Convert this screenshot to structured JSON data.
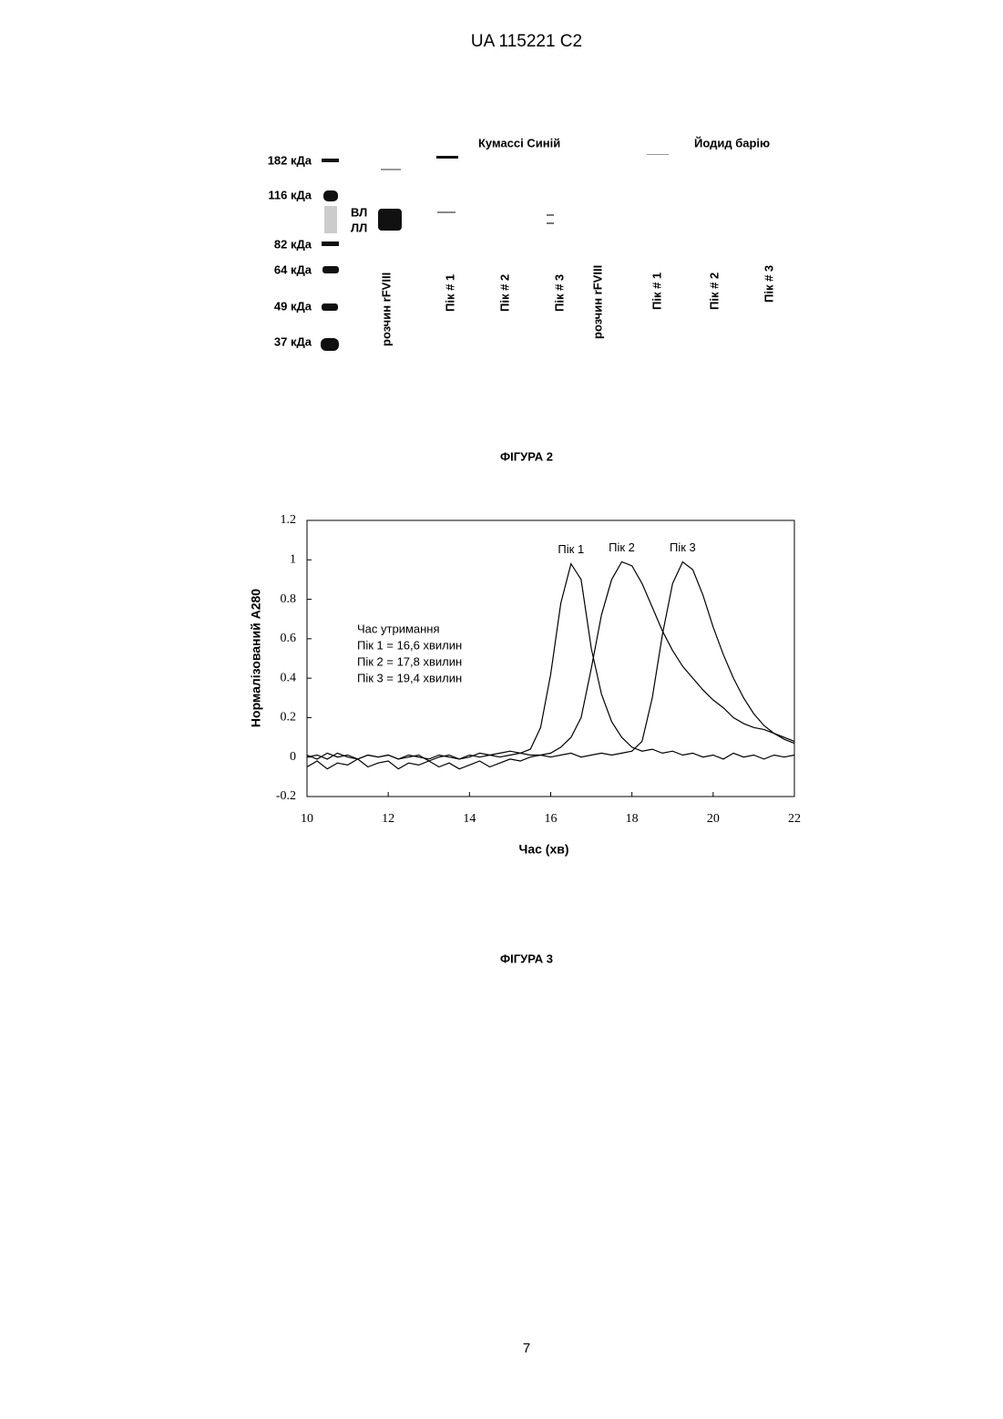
{
  "header": {
    "title": "UA   115221   C2"
  },
  "figure2": {
    "groups": [
      "Кумассі Синій",
      "Йодид барію"
    ],
    "markers": [
      "182 кДа",
      "116 кДа",
      "82 кДа",
      "64 кДа",
      "49 кДа",
      "37 кДа"
    ],
    "chains": [
      "ВЛ",
      "ЛЛ"
    ],
    "lanes": [
      "розчин rFVIII",
      "Пік # 1",
      "Пік # 2",
      "Пік # 3",
      "розчин rFVIII",
      "Пік # 1",
      "Пік # 2",
      "Пік # 3"
    ],
    "caption": "ФІГУРА 2"
  },
  "chart_data": {
    "type": "line",
    "x_label": "Час (хв)",
    "y_label": "Нормалізований A280",
    "annotations": [
      "Час утримання",
      "Пік 1 = 16,6 хвилин",
      "Пік 2 = 17,8 хвилин",
      "Пік 3 = 19,4 хвилин"
    ],
    "x": [
      10,
      10.25,
      10.5,
      10.75,
      11,
      11.25,
      11.5,
      11.75,
      12,
      12.25,
      12.5,
      12.75,
      13,
      13.25,
      13.5,
      13.75,
      14,
      14.25,
      14.5,
      14.75,
      15,
      15.25,
      15.5,
      15.75,
      16,
      16.25,
      16.5,
      16.75,
      17,
      17.25,
      17.5,
      17.75,
      18,
      18.25,
      18.5,
      18.75,
      19,
      19.25,
      19.5,
      19.75,
      20,
      20.25,
      20.5,
      20.75,
      21,
      21.25,
      21.5,
      21.75,
      22
    ],
    "series": [
      {
        "name": "Пік 1",
        "color": "#000000",
        "values": [
          0.01,
          -0.01,
          0.02,
          0,
          0.01,
          -0.01,
          0.01,
          0,
          0.01,
          -0.01,
          0.01,
          0,
          -0.01,
          0.01,
          0,
          -0.01,
          0.01,
          0,
          0.01,
          0.02,
          0.03,
          0.02,
          0.04,
          0.15,
          0.42,
          0.78,
          0.98,
          0.9,
          0.55,
          0.32,
          0.18,
          0.1,
          0.05,
          0.03,
          0.04,
          0.02,
          0.03,
          0.01,
          0.02,
          0,
          0.01,
          -0.01,
          0.02,
          0,
          0.01,
          -0.01,
          0.01,
          0,
          0.01
        ]
      },
      {
        "name": "Пік 2",
        "color": "#000000",
        "values": [
          0,
          0.01,
          -0.01,
          0.02,
          0,
          -0.01,
          0.01,
          0,
          0.01,
          -0.01,
          0,
          0.01,
          -0.02,
          0,
          0.01,
          -0.01,
          0,
          0.02,
          0.01,
          0,
          0.01,
          0.02,
          0.01,
          0.01,
          0.02,
          0.05,
          0.1,
          0.2,
          0.45,
          0.72,
          0.9,
          0.99,
          0.97,
          0.88,
          0.76,
          0.64,
          0.54,
          0.46,
          0.4,
          0.34,
          0.29,
          0.25,
          0.2,
          0.17,
          0.15,
          0.14,
          0.12,
          0.1,
          0.08
        ]
      },
      {
        "name": "Пік 3",
        "color": "#000000",
        "values": [
          -0.05,
          -0.02,
          -0.06,
          -0.03,
          -0.04,
          -0.01,
          -0.05,
          -0.03,
          -0.02,
          -0.06,
          -0.03,
          -0.04,
          -0.02,
          -0.05,
          -0.03,
          -0.06,
          -0.04,
          -0.02,
          -0.05,
          -0.03,
          -0.01,
          -0.02,
          0,
          0.01,
          0,
          0.01,
          0.02,
          0,
          0.01,
          0.02,
          0.01,
          0.02,
          0.03,
          0.08,
          0.3,
          0.62,
          0.88,
          0.99,
          0.95,
          0.82,
          0.66,
          0.52,
          0.4,
          0.3,
          0.22,
          0.16,
          0.12,
          0.09,
          0.07
        ]
      }
    ],
    "xlim": [
      10,
      22
    ],
    "xticks": [
      10,
      12,
      14,
      16,
      18,
      20,
      22
    ],
    "ylim": [
      -0.2,
      1.2
    ],
    "yticks": [
      -0.2,
      0,
      0.2,
      0.4,
      0.6,
      0.8,
      1,
      1.2
    ]
  },
  "figure3": {
    "caption": "ФІГУРА 3"
  },
  "footer": {
    "page": "7"
  }
}
